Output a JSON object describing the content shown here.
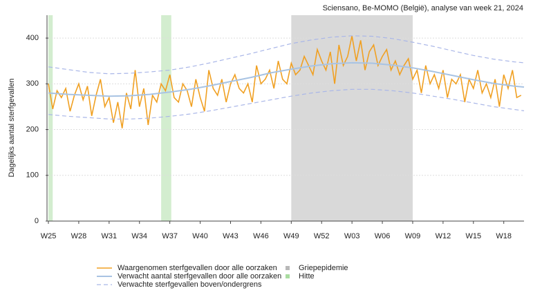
{
  "chart_data": {
    "type": "line",
    "title": "Sciensano, Be-MOMO (België), analyse van week 21, 2024",
    "y_label": "Dagelijks aantal sterfgevallen",
    "xlim": [
      0,
      329
    ],
    "ylim": [
      0,
      450
    ],
    "xticks": [
      {
        "value": 0,
        "label": "W25"
      },
      {
        "value": 21,
        "label": "W28"
      },
      {
        "value": 42,
        "label": "W31"
      },
      {
        "value": 63,
        "label": "W34"
      },
      {
        "value": 84,
        "label": "W37"
      },
      {
        "value": 105,
        "label": "W40"
      },
      {
        "value": 126,
        "label": "W43"
      },
      {
        "value": 147,
        "label": "W46"
      },
      {
        "value": 168,
        "label": "W49"
      },
      {
        "value": 189,
        "label": "W52"
      },
      {
        "value": 210,
        "label": "W03"
      },
      {
        "value": 231,
        "label": "W06"
      },
      {
        "value": 252,
        "label": "W09"
      },
      {
        "value": 273,
        "label": "W12"
      },
      {
        "value": 294,
        "label": "W15"
      },
      {
        "value": 315,
        "label": "W18"
      }
    ],
    "yticks": [
      0,
      100,
      200,
      300,
      400
    ],
    "grid": true,
    "periods": [
      {
        "name": "Griepepidemie",
        "color": "#d9d9d9",
        "ranges": [
          [
            168,
            252
          ]
        ]
      },
      {
        "name": "Hitte",
        "color": "#d3edcf",
        "ranges": [
          [
            0,
            3
          ],
          [
            78,
            85
          ]
        ]
      }
    ],
    "series": [
      {
        "name": "Waargenomen sterfgevallen door alle oorzaken",
        "color": "#f0a022",
        "width": 1.6,
        "x": [
          0,
          3,
          6,
          9,
          12,
          15,
          18,
          21,
          24,
          27,
          30,
          33,
          36,
          39,
          42,
          45,
          48,
          51,
          54,
          57,
          60,
          63,
          66,
          69,
          72,
          75,
          78,
          81,
          84,
          87,
          90,
          93,
          96,
          99,
          102,
          105,
          108,
          111,
          114,
          117,
          120,
          123,
          126,
          129,
          132,
          135,
          138,
          141,
          144,
          147,
          150,
          153,
          156,
          159,
          162,
          165,
          168,
          171,
          174,
          177,
          180,
          183,
          186,
          189,
          192,
          195,
          198,
          201,
          204,
          207,
          210,
          213,
          216,
          219,
          222,
          225,
          228,
          231,
          234,
          237,
          240,
          243,
          246,
          249,
          252,
          255,
          258,
          261,
          264,
          267,
          270,
          273,
          276,
          279,
          282,
          285,
          288,
          291,
          294,
          297,
          300,
          303,
          306,
          309,
          312,
          315,
          318,
          321,
          324,
          327
        ],
        "values": [
          300,
          245,
          285,
          270,
          290,
          240,
          275,
          300,
          265,
          295,
          230,
          275,
          310,
          250,
          270,
          215,
          260,
          203,
          280,
          245,
          330,
          250,
          290,
          210,
          275,
          260,
          300,
          285,
          320,
          270,
          260,
          300,
          285,
          250,
          310,
          270,
          240,
          330,
          290,
          275,
          310,
          260,
          300,
          320,
          290,
          280,
          300,
          260,
          340,
          300,
          310,
          330,
          290,
          350,
          310,
          300,
          345,
          320,
          330,
          360,
          340,
          320,
          375,
          350,
          330,
          370,
          300,
          385,
          340,
          360,
          405,
          350,
          395,
          330,
          370,
          385,
          340,
          360,
          375,
          330,
          350,
          320,
          340,
          355,
          310,
          330,
          280,
          340,
          300,
          320,
          290,
          330,
          270,
          310,
          300,
          320,
          260,
          310,
          290,
          330,
          280,
          300,
          270,
          310,
          250,
          320,
          290,
          330,
          270,
          275
        ]
      },
      {
        "name": "Verwacht aantal sterfgevallen door alle oorzaken",
        "color": "#a8c3e3",
        "width": 2,
        "x": [
          0,
          14,
          28,
          42,
          56,
          70,
          84,
          98,
          112,
          126,
          140,
          154,
          168,
          182,
          196,
          210,
          224,
          238,
          252,
          266,
          280,
          294,
          308,
          322,
          329
        ],
        "values": [
          280,
          277,
          275,
          273,
          274,
          277,
          282,
          288,
          296,
          305,
          314,
          324,
          332,
          339,
          344,
          346,
          345,
          341,
          335,
          327,
          318,
          309,
          301,
          295,
          293
        ]
      },
      {
        "name": "Verwachte sterfgevallen boven/ondergrens",
        "color": "#a9b6e8",
        "width": 1.2,
        "dash": true,
        "x": [
          0,
          14,
          28,
          42,
          56,
          70,
          84,
          98,
          112,
          126,
          140,
          154,
          168,
          182,
          196,
          210,
          224,
          238,
          252,
          266,
          280,
          294,
          308,
          322,
          329
        ],
        "values": [
          337,
          331,
          325,
          322,
          323,
          326,
          330,
          337,
          346,
          356,
          366,
          377,
          388,
          396,
          402,
          405,
          404,
          399,
          391,
          382,
          372,
          362,
          354,
          348,
          346
        ],
        "lower": [
          233,
          229,
          226,
          223,
          223,
          225,
          229,
          234,
          241,
          249,
          257,
          265,
          273,
          280,
          285,
          288,
          288,
          285,
          280,
          273,
          266,
          258,
          250,
          244,
          241
        ]
      }
    ]
  }
}
